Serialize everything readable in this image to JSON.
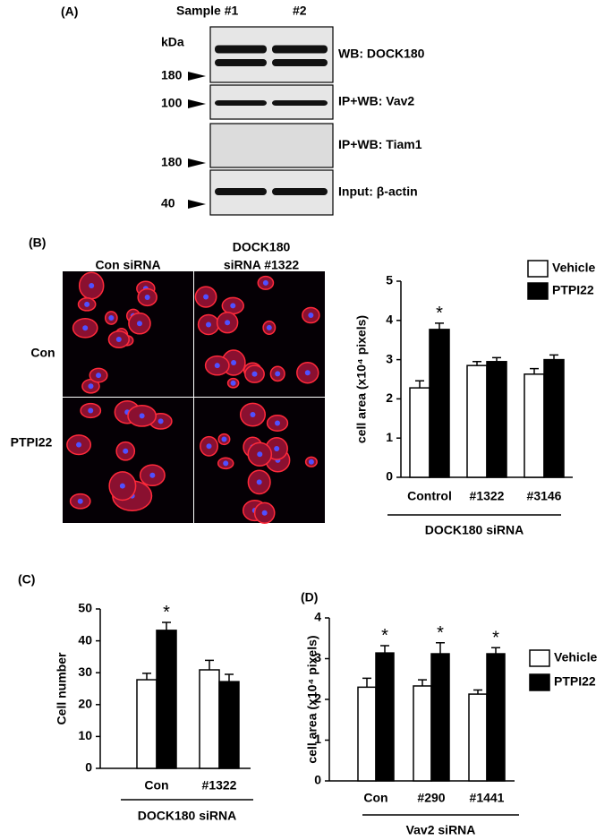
{
  "panel_a": {
    "label": "(A)",
    "columns": [
      "Sample #1",
      "#2"
    ],
    "unit": "kDa",
    "blots": [
      {
        "label": "WB: DOCK180",
        "marker": "180"
      },
      {
        "label": "IP+WB: Vav2",
        "marker": "100"
      },
      {
        "label": "IP+WB: Tiam1",
        "marker": "180"
      },
      {
        "label": "Input: β-actin",
        "marker": "40"
      }
    ]
  },
  "panel_b": {
    "label": "(B)",
    "columns": [
      "Con siRNA",
      "DOCK180",
      "siRNA #1322"
    ],
    "rows": [
      "Con",
      "PTPI22"
    ]
  },
  "panel_c": {
    "label": "(C)"
  },
  "panel_d": {
    "label": "(D)"
  },
  "chart_data": [
    {
      "type": "bar",
      "ylabel": "cell area (x10⁴ pixels)",
      "categories": [
        "Control",
        "#1322",
        "#3146"
      ],
      "group_label": "DOCK180 siRNA",
      "series": [
        {
          "name": "Vehicle",
          "color": "#ffffff",
          "values": [
            2.28,
            2.85,
            2.63
          ],
          "errors": [
            0.18,
            0.1,
            0.14
          ]
        },
        {
          "name": "PTPI22",
          "color": "#000000",
          "values": [
            3.77,
            2.95,
            3.0
          ],
          "errors": [
            0.16,
            0.1,
            0.12
          ],
          "annotations": [
            "*",
            null,
            null
          ]
        }
      ],
      "ylim": [
        0,
        5
      ],
      "yticks": [
        0,
        1,
        2,
        3,
        4,
        5
      ]
    },
    {
      "type": "bar",
      "ylabel": "Cell number",
      "categories": [
        "Con",
        "#1322"
      ],
      "group_label": "DOCK180 siRNA",
      "series": [
        {
          "color": "#ffffff",
          "values": [
            27.8,
            30.9
          ],
          "errors": [
            2,
            3
          ]
        },
        {
          "color": "#000000",
          "values": [
            43.3,
            27.2
          ],
          "errors": [
            2.5,
            2.3
          ],
          "annotations": [
            "*",
            null
          ]
        }
      ],
      "ylim": [
        0,
        50
      ],
      "yticks": [
        0,
        10,
        20,
        30,
        40,
        50
      ]
    },
    {
      "type": "bar",
      "ylabel": "cell area (x10⁴ pixels)",
      "categories": [
        "Con",
        "#290",
        "#1441"
      ],
      "group_label": "Vav2 siRNA",
      "series": [
        {
          "name": "Vehicle",
          "color": "#ffffff",
          "values": [
            2.3,
            2.33,
            2.13
          ],
          "errors": [
            0.22,
            0.15,
            0.1
          ]
        },
        {
          "name": "PTPI22",
          "color": "#000000",
          "values": [
            3.14,
            3.12,
            3.12
          ],
          "errors": [
            0.18,
            0.27,
            0.15
          ],
          "annotations": [
            "*",
            "*",
            "*"
          ]
        }
      ],
      "ylim": [
        0,
        4
      ],
      "yticks": [
        0,
        1,
        2,
        3,
        4
      ]
    }
  ]
}
